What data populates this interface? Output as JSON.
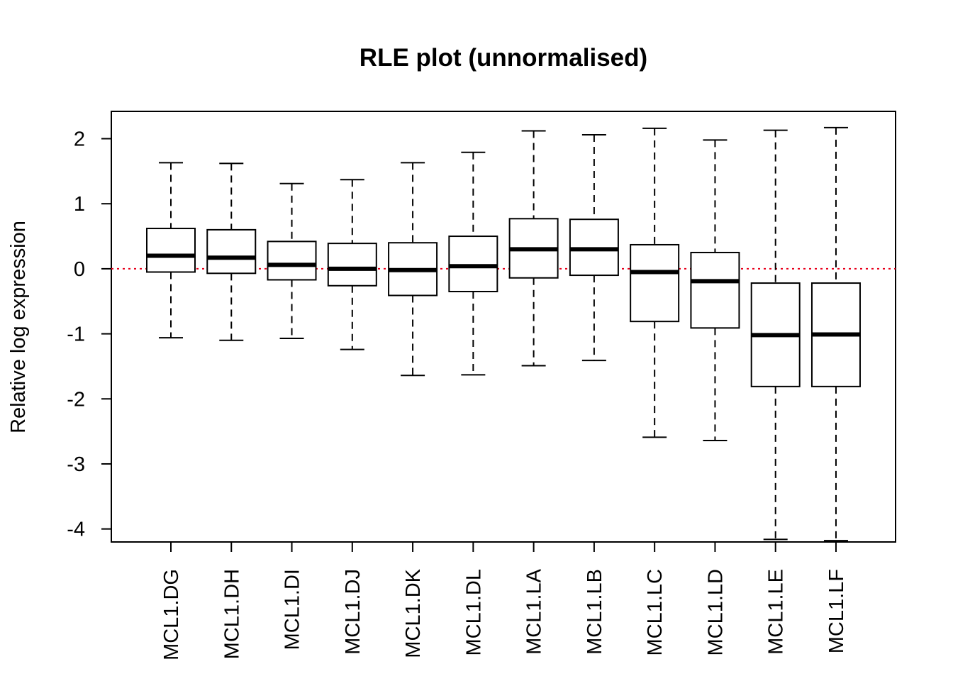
{
  "chart_data": {
    "type": "box",
    "title": "RLE plot (unnormalised)",
    "xlabel": "",
    "ylabel": "Relative log expression",
    "ylim": [
      -4.2,
      2.42
    ],
    "yticks": [
      -4,
      -3,
      -2,
      -1,
      0,
      1,
      2
    ],
    "reference_line": {
      "y": 0,
      "color": "#e8001c",
      "style": "dotted"
    },
    "categories": [
      "MCL1.DG",
      "MCL1.DH",
      "MCL1.DI",
      "MCL1.DJ",
      "MCL1.DK",
      "MCL1.DL",
      "MCL1.LA",
      "MCL1.LB",
      "MCL1.LC",
      "MCL1.LD",
      "MCL1.LE",
      "MCL1.LF"
    ],
    "boxes": [
      {
        "whisker_low": -1.06,
        "q1": -0.05,
        "median": 0.2,
        "q3": 0.62,
        "whisker_high": 1.63
      },
      {
        "whisker_low": -1.1,
        "q1": -0.07,
        "median": 0.17,
        "q3": 0.6,
        "whisker_high": 1.62
      },
      {
        "whisker_low": -1.07,
        "q1": -0.17,
        "median": 0.06,
        "q3": 0.42,
        "whisker_high": 1.31
      },
      {
        "whisker_low": -1.24,
        "q1": -0.26,
        "median": 0.0,
        "q3": 0.39,
        "whisker_high": 1.37
      },
      {
        "whisker_low": -1.64,
        "q1": -0.41,
        "median": -0.02,
        "q3": 0.4,
        "whisker_high": 1.63
      },
      {
        "whisker_low": -1.63,
        "q1": -0.35,
        "median": 0.04,
        "q3": 0.5,
        "whisker_high": 1.79
      },
      {
        "whisker_low": -1.49,
        "q1": -0.14,
        "median": 0.3,
        "q3": 0.77,
        "whisker_high": 2.12
      },
      {
        "whisker_low": -1.41,
        "q1": -0.1,
        "median": 0.3,
        "q3": 0.76,
        "whisker_high": 2.06
      },
      {
        "whisker_low": -2.59,
        "q1": -0.81,
        "median": -0.05,
        "q3": 0.37,
        "whisker_high": 2.16
      },
      {
        "whisker_low": -2.64,
        "q1": -0.91,
        "median": -0.19,
        "q3": 0.25,
        "whisker_high": 1.98
      },
      {
        "whisker_low": -4.16,
        "q1": -1.81,
        "median": -1.02,
        "q3": -0.22,
        "whisker_high": 2.13
      },
      {
        "whisker_low": -4.18,
        "q1": -1.81,
        "median": -1.01,
        "q3": -0.22,
        "whisker_high": 2.17
      }
    ],
    "grid": false,
    "legend": "none"
  }
}
